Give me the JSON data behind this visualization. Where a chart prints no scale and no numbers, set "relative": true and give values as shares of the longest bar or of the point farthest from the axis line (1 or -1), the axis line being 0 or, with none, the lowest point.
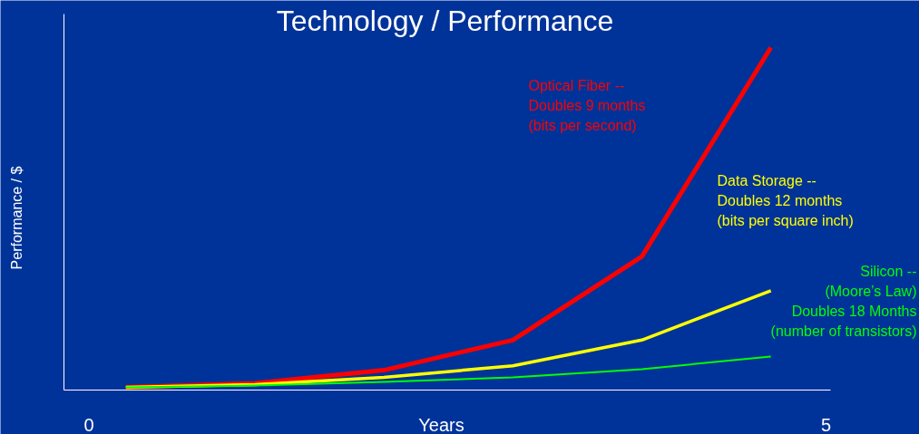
{
  "chart_data": {
    "type": "line",
    "title": "Technology / Performance",
    "xlabel": "Years",
    "ylabel": "Performance / $",
    "relative": true,
    "x": [
      0.25,
      1.125,
      2,
      2.875,
      3.75,
      4.625
    ],
    "xlim": [
      -0.17,
      5.03
    ],
    "xticks": [
      0,
      5
    ],
    "grid": false,
    "legend": false,
    "marker": "none",
    "line_style": "solid",
    "series": [
      {
        "name": "Optical Fiber  --\nDoubles 9 months\n(bits per second)",
        "color": "#ff0000",
        "values": [
          0.008,
          0.02,
          0.058,
          0.146,
          0.39,
          1
        ]
      },
      {
        "name": "Data Storage --\nDoubles 12 months\n(bits per square inch)",
        "color": "#ffff00",
        "values": [
          0.008,
          0.016,
          0.037,
          0.071,
          0.146,
          0.29
        ]
      },
      {
        "name": "Silicon --\n(Moore’s Law)\nDoubles 18 Months\n(number of transistors)",
        "color": "#00ff00",
        "values": [
          0.008,
          0.013,
          0.024,
          0.037,
          0.061,
          0.098
        ]
      }
    ]
  }
}
